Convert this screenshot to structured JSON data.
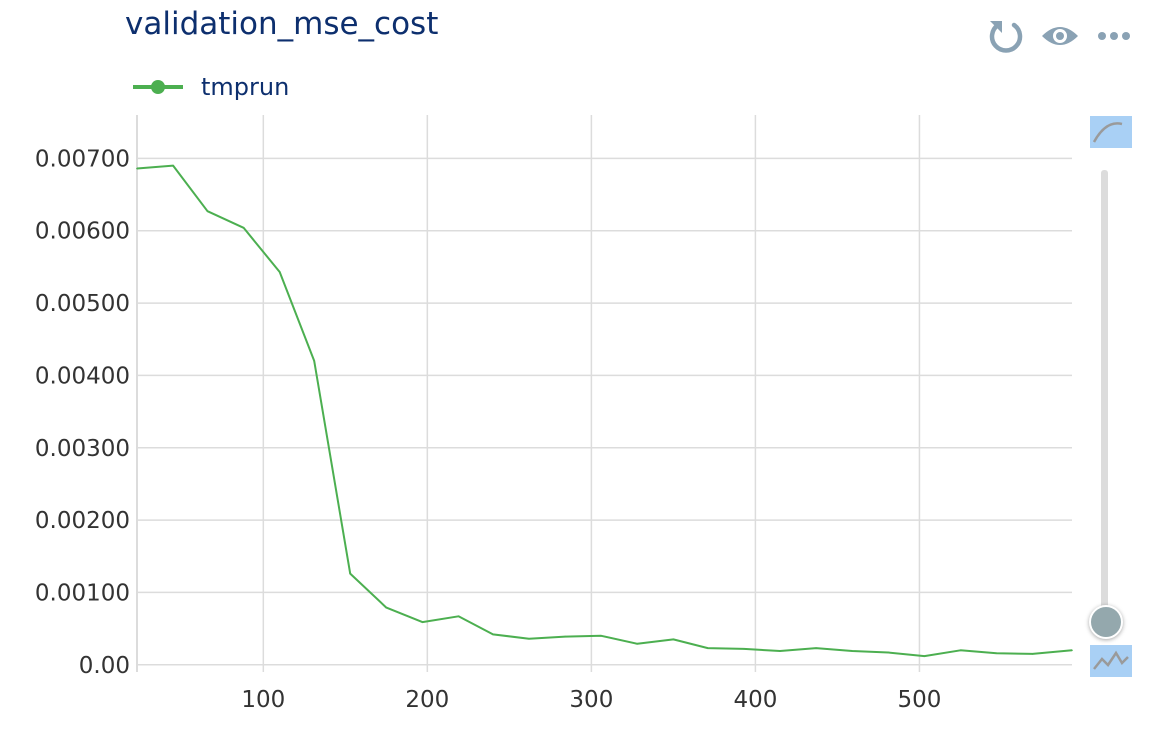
{
  "header": {
    "title": "validation_mse_cost",
    "icons": [
      "reload-icon",
      "eye-icon",
      "more-icon"
    ]
  },
  "colors": {
    "series": "#4caf50",
    "title": "#0d2f6e",
    "icon": "#8aa2b4",
    "grid": "#dcdcdc",
    "scale_button": "#a9d0f5"
  },
  "chart_data": {
    "type": "line",
    "title": "validation_mse_cost",
    "xlabel": "",
    "ylabel": "",
    "xlim": [
      23,
      593
    ],
    "ylim": [
      -0.0001,
      0.0076
    ],
    "x_ticks": [
      100,
      200,
      300,
      400,
      500
    ],
    "y_ticks": [
      {
        "value": 0,
        "label": "0.00"
      },
      {
        "value": 0.001,
        "label": "0.00100"
      },
      {
        "value": 0.002,
        "label": "0.00200"
      },
      {
        "value": 0.003,
        "label": "0.00300"
      },
      {
        "value": 0.004,
        "label": "0.00400"
      },
      {
        "value": 0.005,
        "label": "0.00500"
      },
      {
        "value": 0.006,
        "label": "0.00600"
      },
      {
        "value": 0.007,
        "label": "0.00700"
      }
    ],
    "grid": true,
    "legend": "top-left",
    "series": [
      {
        "name": "tmprun",
        "x": [
          23,
          45,
          66,
          88,
          110,
          131,
          153,
          175,
          197,
          219,
          240,
          262,
          284,
          306,
          328,
          350,
          371,
          393,
          415,
          437,
          459,
          481,
          503,
          525,
          547,
          569,
          593
        ],
        "y": [
          0.00686,
          0.0069,
          0.00627,
          0.00604,
          0.00543,
          0.0042,
          0.00126,
          0.00079,
          0.00059,
          0.00067,
          0.00042,
          0.00036,
          0.00039,
          0.0004,
          0.00029,
          0.00035,
          0.00023,
          0.00022,
          0.00019,
          0.00023,
          0.00019,
          0.00017,
          0.00012,
          0.0002,
          0.00016,
          0.00015,
          0.0002
        ]
      }
    ]
  }
}
